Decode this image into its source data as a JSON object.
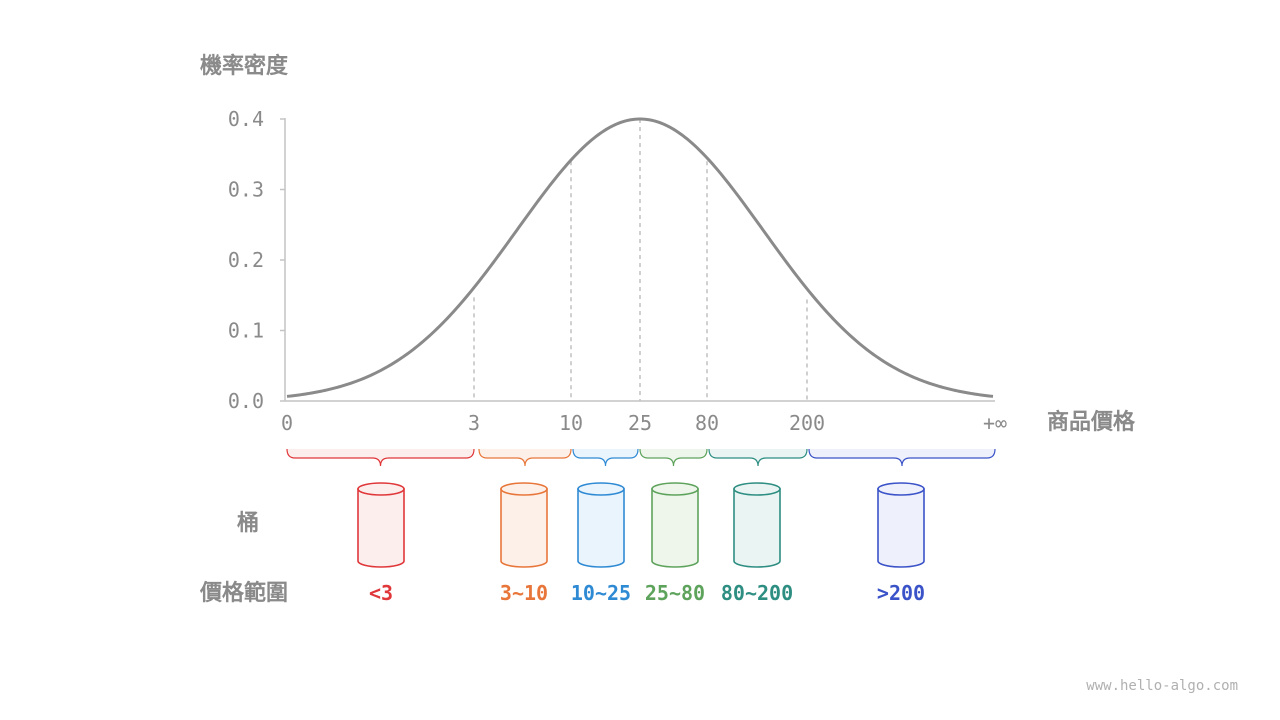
{
  "labels": {
    "y_axis_title": "機率密度",
    "x_axis_title": "商品價格",
    "bucket_row_label": "桶",
    "range_row_label": "價格範圍",
    "watermark": "www.hello-algo.com"
  },
  "chart_data": {
    "type": "line",
    "curve": "normal-distribution bell curve",
    "y_ticks": [
      "0.0",
      "0.1",
      "0.2",
      "0.3",
      "0.4"
    ],
    "ylim": [
      0,
      0.4
    ],
    "x_ticks": [
      "0",
      "3",
      "10",
      "25",
      "80",
      "200",
      "+∞"
    ],
    "points": [
      {
        "x": "0",
        "y": 0.005
      },
      {
        "x": "3",
        "y": 0.147
      },
      {
        "x": "10",
        "y": 0.34
      },
      {
        "x": "25",
        "y": 0.4
      },
      {
        "x": "80",
        "y": 0.34
      },
      {
        "x": "200",
        "y": 0.144
      },
      {
        "x": "+∞",
        "y": 0.005
      }
    ],
    "dashed_guides_at": [
      "3",
      "10",
      "25",
      "80",
      "200"
    ],
    "grid": false
  },
  "buckets": [
    {
      "range": "<3",
      "color": "#e0373a",
      "fill": "#fdeeee"
    },
    {
      "range": "3~10",
      "color": "#e8763a",
      "fill": "#fdf0e8"
    },
    {
      "range": "10~25",
      "color": "#2f8ad4",
      "fill": "#eaf4fc"
    },
    {
      "range": "25~80",
      "color": "#5ea35c",
      "fill": "#eef6ec"
    },
    {
      "range": "80~200",
      "color": "#2e8e82",
      "fill": "#eaf5f3"
    },
    {
      "range": ">200",
      "color": "#3b53c8",
      "fill": "#eef0fb"
    }
  ],
  "colors": {
    "axis": "#c4c4c4",
    "curve": "#8a8a8a",
    "text": "#8a8a8a",
    "guide": "#c0c0c0"
  }
}
